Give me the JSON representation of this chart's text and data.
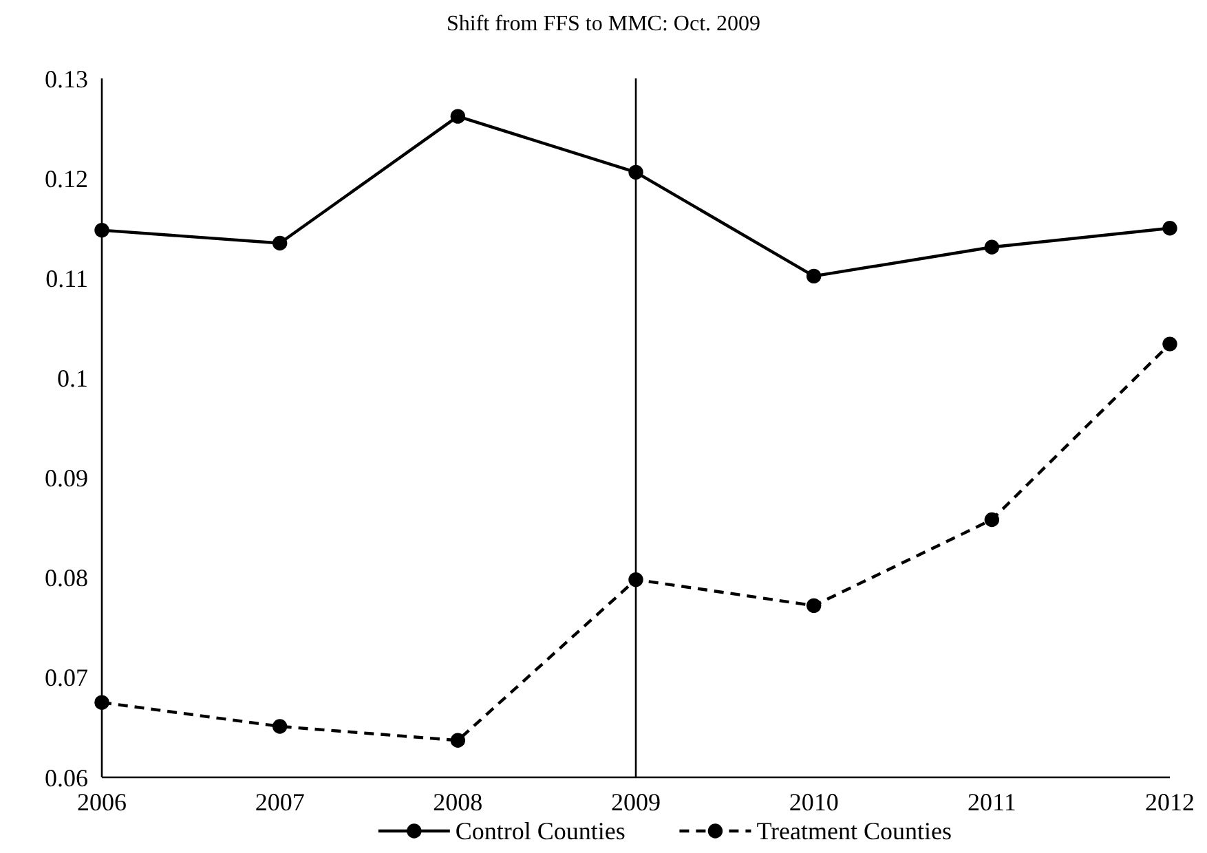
{
  "chart_data": {
    "type": "line",
    "title": "Shift from FFS to MMC: Oct. 2009",
    "x": [
      2006,
      2007,
      2008,
      2009,
      2010,
      2011,
      2012
    ],
    "xlim": [
      2006,
      2012
    ],
    "xticks": [
      2006,
      2007,
      2008,
      2009,
      2010,
      2011,
      2012
    ],
    "ylim": [
      0.06,
      0.13
    ],
    "yticks": [
      {
        "value": 0.06,
        "label": "0.06"
      },
      {
        "value": 0.07,
        "label": "0.07"
      },
      {
        "value": 0.08,
        "label": "0.08"
      },
      {
        "value": 0.09,
        "label": "0.09"
      },
      {
        "value": 0.1,
        "label": "0.1"
      },
      {
        "value": 0.11,
        "label": "0.11"
      },
      {
        "value": 0.12,
        "label": "0.12"
      },
      {
        "value": 0.13,
        "label": "0.13"
      }
    ],
    "series": [
      {
        "name": "Control Counties",
        "color": "#000000",
        "line_style": "solid",
        "values": [
          0.1148,
          0.1135,
          0.1262,
          0.1206,
          0.1102,
          0.1131,
          0.115
        ]
      },
      {
        "name": "Treatment Counties",
        "color": "#000000",
        "line_style": "dashed",
        "values": [
          0.0675,
          0.0651,
          0.0637,
          0.0798,
          0.0772,
          0.0858,
          0.1034
        ]
      }
    ],
    "marker": "circle",
    "grid": false,
    "legend": "bottom",
    "ref_lines": [
      {
        "axis": "x",
        "value": 2009,
        "color": "#000000"
      }
    ]
  }
}
